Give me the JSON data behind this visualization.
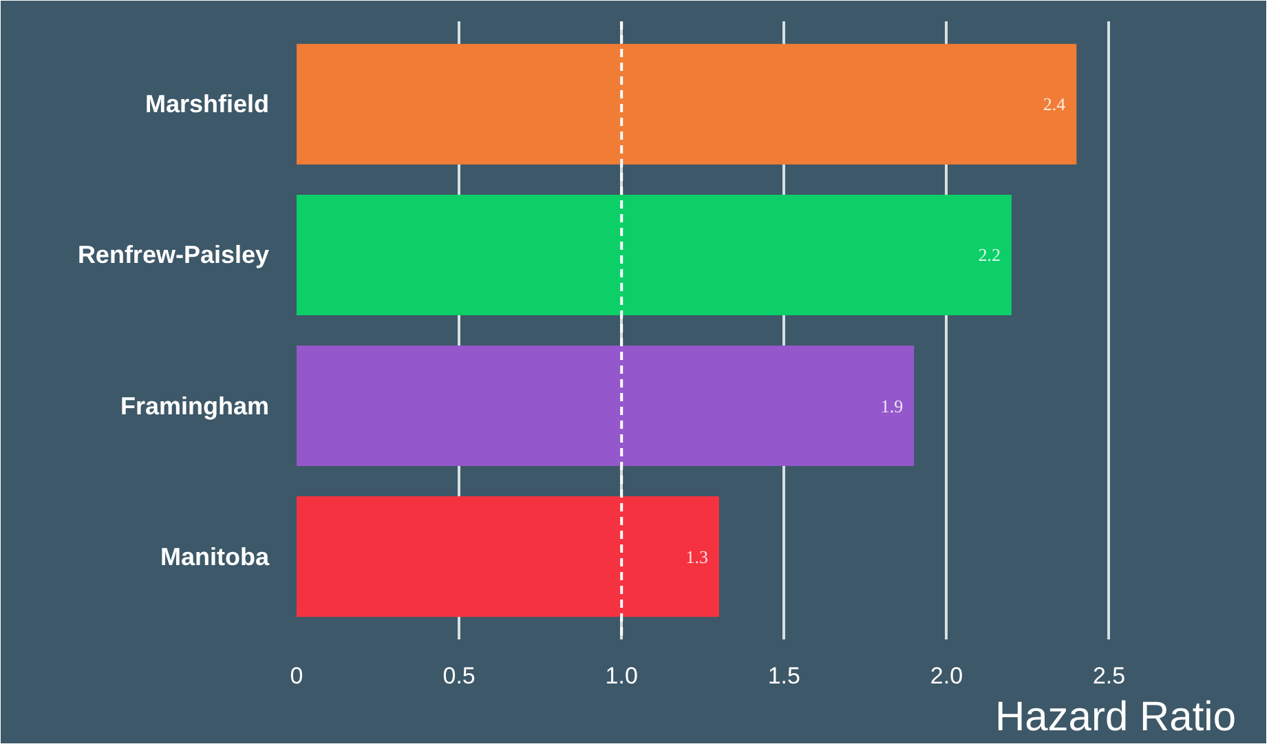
{
  "chart_data": {
    "type": "bar",
    "orientation": "horizontal",
    "xlabel": "Hazard Ratio",
    "categories": [
      "Marshfield",
      "Renfrew-Paisley",
      "Framingham",
      "Manitoba"
    ],
    "values": [
      2.4,
      2.2,
      1.9,
      1.3
    ],
    "colors": [
      "#f07c36",
      "#0ccf67",
      "#9457cc",
      "#f5323f"
    ],
    "data_labels": true,
    "xlim": [
      0,
      2.5
    ],
    "xticks": [
      0,
      {
        "value": 0.5,
        "label": "0.5"
      },
      {
        "value": 1,
        "label": "1.0"
      },
      {
        "value": 1.5,
        "label": "1.5"
      },
      {
        "value": 2,
        "label": "2.0"
      },
      {
        "value": 2.5,
        "label": "2.5"
      }
    ],
    "grid": "x",
    "ref_lines": [
      {
        "axis": "x",
        "value": 1,
        "label": null,
        "color": "#ffffff",
        "line_style": "dashed"
      }
    ]
  }
}
